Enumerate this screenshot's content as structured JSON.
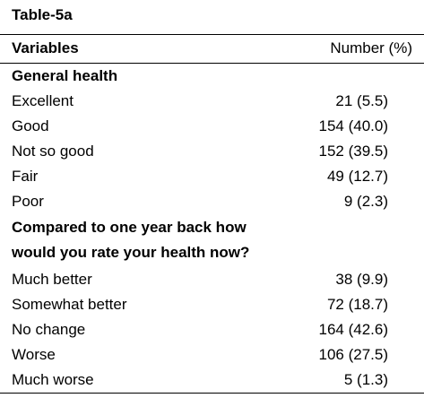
{
  "caption": "Table-5a",
  "header": {
    "variables": "Variables",
    "number": "Number (%)"
  },
  "sections": [
    {
      "title_lines": [
        "General health"
      ],
      "rows": [
        {
          "label": "Excellent",
          "value": "21 (5.5)"
        },
        {
          "label": "Good",
          "value": "154 (40.0)"
        },
        {
          "label": "Not so good",
          "value": "152 (39.5)"
        },
        {
          "label": "Fair",
          "value": "49 (12.7)"
        },
        {
          "label": "Poor",
          "value": "9 (2.3)"
        }
      ]
    },
    {
      "title_lines": [
        "Compared to one year back how",
        "would you rate your health now?"
      ],
      "rows": [
        {
          "label": "Much better",
          "value": "38 (9.9)"
        },
        {
          "label": "Somewhat better",
          "value": "72 (18.7)"
        },
        {
          "label": "No change",
          "value": "164 (42.6)"
        },
        {
          "label": "Worse",
          "value": "106 (27.5)"
        },
        {
          "label": "Much worse",
          "value": "5 (1.3)"
        }
      ]
    }
  ]
}
